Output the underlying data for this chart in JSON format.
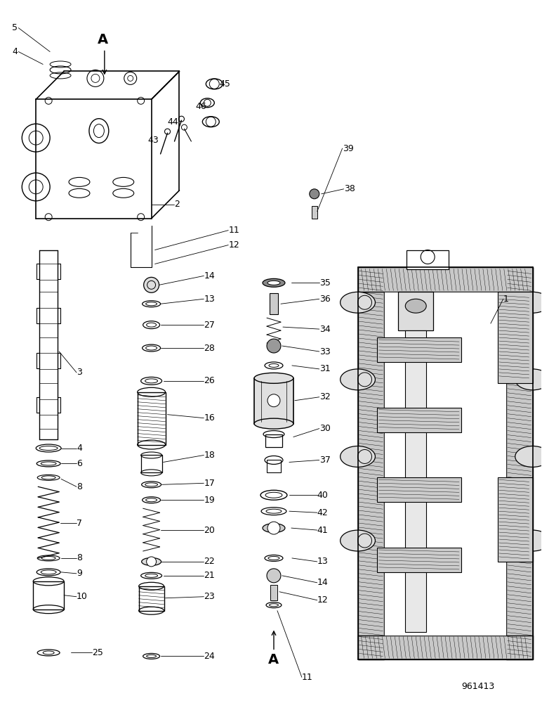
{
  "background_color": "#ffffff",
  "part_number": "961413",
  "figure_size": [
    7.72,
    10.0
  ],
  "dpi": 100
}
